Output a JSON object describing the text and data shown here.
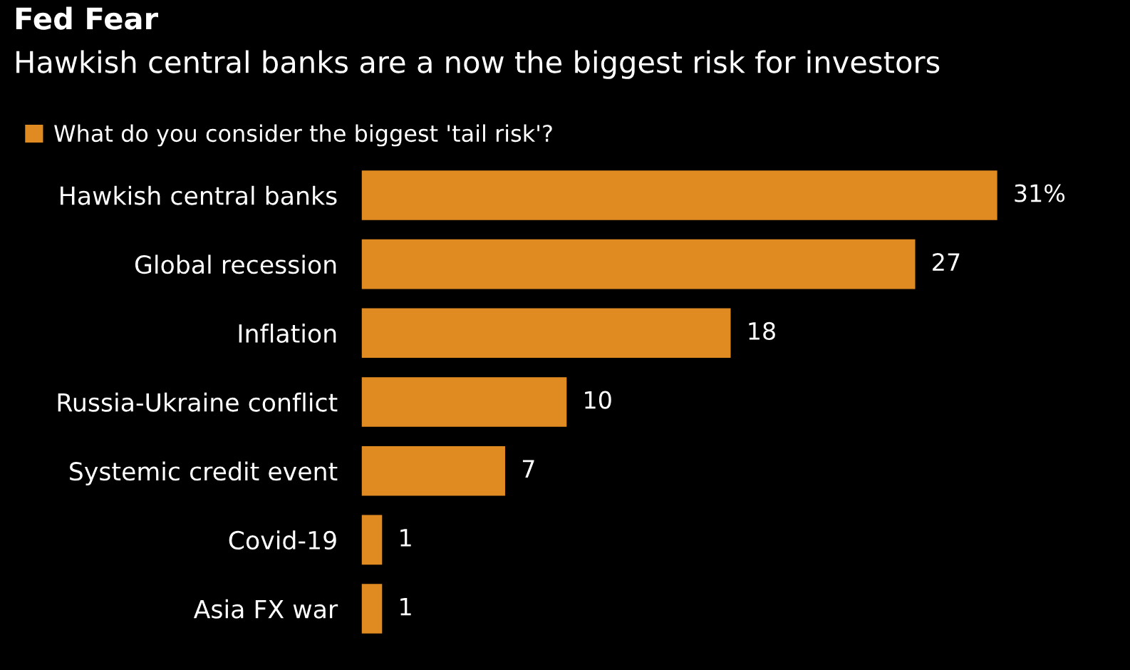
{
  "chart_data": {
    "type": "bar",
    "orientation": "horizontal",
    "title": "Fed Fear",
    "subtitle": "Hawkish central banks are a now the biggest risk for investors",
    "categories": [
      "Hawkish central banks",
      "Global recession",
      "Inflation",
      "Russia-Ukraine conflict",
      "Systemic credit event",
      "Covid-19",
      "Asia FX war"
    ],
    "series": [
      {
        "name": "What do you consider the biggest 'tail risk'?",
        "color": "#e08a22",
        "values": [
          31,
          27,
          18,
          10,
          7,
          1,
          1
        ],
        "value_labels": [
          "31%",
          "27",
          "18",
          "10",
          "7",
          "1",
          "1"
        ]
      }
    ],
    "legend": "top left",
    "grid": false
  }
}
